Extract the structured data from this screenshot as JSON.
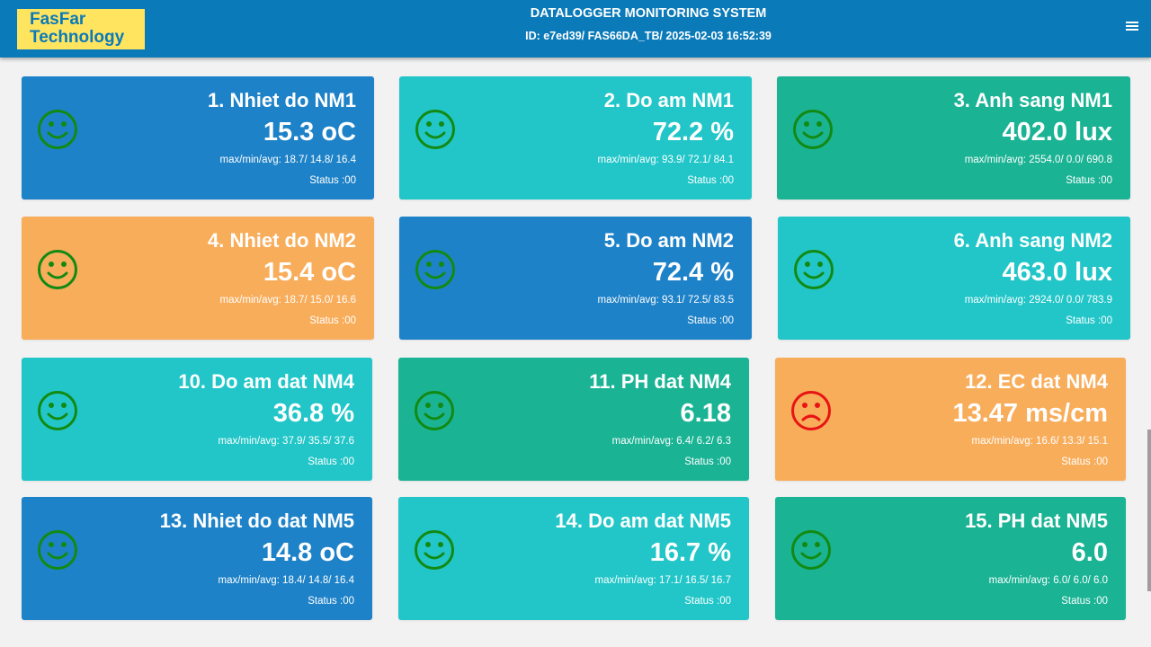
{
  "header": {
    "logo_line1": "FasFar",
    "logo_line2": "Technology",
    "title": "DATALOGGER MONITORING SYSTEM",
    "subtitle": "ID: e7ed39/ FAS66DA_TB/ 2025-02-03 16:52:39",
    "menu_icon": "menu-icon"
  },
  "colors": {
    "header": "#0a7ab8",
    "logo_bg": "#ffe460",
    "blue": "#1e82c8",
    "cyan": "#22c6c8",
    "green": "#1ab394",
    "orange": "#f8ad5b",
    "face_ok": "#128a12",
    "face_bad": "#e81414"
  },
  "cards": [
    {
      "name": "1. Nhiet do NM1",
      "value": "15.3 oC",
      "stats": "max/min/avg: 18.7/ 14.8/ 16.4",
      "status": "Status :00",
      "face": "happy-face-icon",
      "color": "blue"
    },
    {
      "name": "2. Do am NM1",
      "value": "72.2 %",
      "stats": "max/min/avg: 93.9/ 72.1/ 84.1",
      "status": "Status :00",
      "face": "happy-face-icon",
      "color": "cyan"
    },
    {
      "name": "3. Anh sang NM1",
      "value": "402.0 lux",
      "stats": "max/min/avg: 2554.0/ 0.0/ 690.8",
      "status": "Status :00",
      "face": "happy-face-icon",
      "color": "green"
    },
    {
      "name": "4. Nhiet do NM2",
      "value": "15.4 oC",
      "stats": "max/min/avg: 18.7/ 15.0/ 16.6",
      "status": "Status :00",
      "face": "happy-face-icon",
      "color": "orange"
    },
    {
      "name": "5. Do am NM2",
      "value": "72.4 %",
      "stats": "max/min/avg: 93.1/ 72.5/ 83.5",
      "status": "Status :00",
      "face": "happy-face-icon",
      "color": "blue"
    },
    {
      "name": "6. Anh sang NM2",
      "value": "463.0 lux",
      "stats": "max/min/avg: 2924.0/ 0.0/ 783.9",
      "status": "Status :00",
      "face": "happy-face-icon",
      "color": "cyan"
    },
    {
      "name": "10. Do am dat NM4",
      "value": "36.8 %",
      "stats": "max/min/avg: 37.9/ 35.5/ 37.6",
      "status": "Status :00",
      "face": "happy-face-icon",
      "color": "cyan"
    },
    {
      "name": "11. PH dat NM4",
      "value": "6.18",
      "stats": "max/min/avg: 6.4/ 6.2/ 6.3",
      "status": "Status :00",
      "face": "happy-face-icon",
      "color": "green"
    },
    {
      "name": "12. EC dat NM4",
      "value": "13.47 ms/cm",
      "stats": "max/min/avg: 16.6/ 13.3/ 15.1",
      "status": "Status :00",
      "face": "sad-face-icon",
      "color": "orange"
    },
    {
      "name": "13. Nhiet do dat NM5",
      "value": "14.8 oC",
      "stats": "max/min/avg: 18.4/ 14.8/ 16.4",
      "status": "Status :00",
      "face": "happy-face-icon",
      "color": "blue"
    },
    {
      "name": "14. Do am dat NM5",
      "value": "16.7 %",
      "stats": "max/min/avg: 17.1/ 16.5/ 16.7",
      "status": "Status :00",
      "face": "happy-face-icon",
      "color": "cyan"
    },
    {
      "name": "15. PH dat NM5",
      "value": "6.0",
      "stats": "max/min/avg: 6.0/ 6.0/ 6.0",
      "status": "Status :00",
      "face": "happy-face-icon",
      "color": "green"
    }
  ]
}
